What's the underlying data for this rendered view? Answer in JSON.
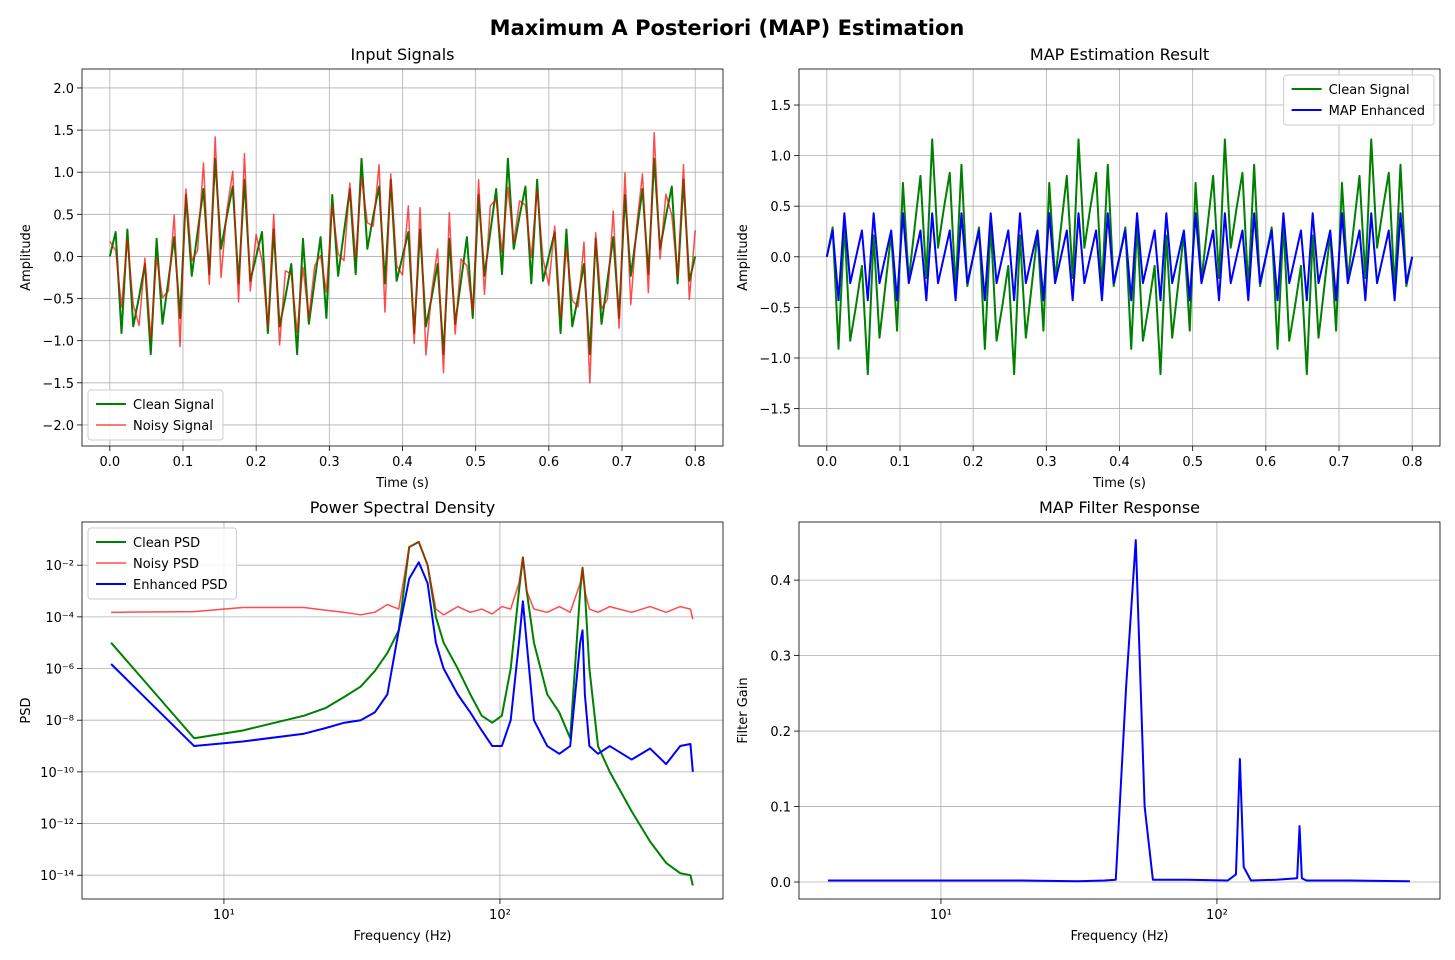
{
  "title": "Maximum A Posteriori (MAP) Estimation",
  "chart_data": [
    {
      "type": "line",
      "title": "Input Signals",
      "xlabel": "Time (s)",
      "ylabel": "Amplitude",
      "xlim": [
        -0.038,
        0.838
      ],
      "ylim": [
        -2.25,
        2.225
      ],
      "xticks": [
        {
          "value": 0,
          "label": "0.0"
        },
        0.1,
        0.2,
        0.3,
        0.4,
        0.5,
        0.6,
        0.7,
        0.8
      ],
      "yticks": [
        {
          "value": -2,
          "label": "−2.0"
        },
        {
          "value": -1.5,
          "label": "−1.5"
        },
        {
          "value": -1,
          "label": "−1.0"
        },
        {
          "value": -0.5,
          "label": "−0.5"
        },
        {
          "value": 0,
          "label": "0.0"
        },
        0.5,
        {
          "value": 1,
          "label": "1.0"
        },
        1.5,
        {
          "value": 2,
          "label": "2.0"
        }
      ],
      "grid": true,
      "legend": "lower left",
      "x": [
        0,
        0.008,
        0.016,
        0.024,
        0.032,
        0.04,
        0.048,
        0.056,
        0.064,
        0.072,
        0.08,
        0.088,
        0.096,
        0.104,
        0.112,
        0.12,
        0.128,
        0.136,
        0.144,
        0.152,
        0.16,
        0.168,
        0.176,
        0.184,
        0.192,
        0.2,
        0.208,
        0.216,
        0.224,
        0.232,
        0.24,
        0.248,
        0.256,
        0.264,
        0.272,
        0.28,
        0.288,
        0.296,
        0.304,
        0.312,
        0.32,
        0.328,
        0.336,
        0.344,
        0.352,
        0.36,
        0.368,
        0.376,
        0.384,
        0.392,
        0.4,
        0.408,
        0.416,
        0.424,
        0.432,
        0.44,
        0.448,
        0.456,
        0.464,
        0.472,
        0.48,
        0.488,
        0.496,
        0.504,
        0.512,
        0.52,
        0.528,
        0.536,
        0.544,
        0.552,
        0.56,
        0.568,
        0.576,
        0.584,
        0.592,
        0.6,
        0.608,
        0.616,
        0.624,
        0.632,
        0.64,
        0.648,
        0.656,
        0.664,
        0.672,
        0.68,
        0.688,
        0.696,
        0.704,
        0.712,
        0.72,
        0.728,
        0.736,
        0.744,
        0.752,
        0.76,
        0.768,
        0.776,
        0.784,
        0.792,
        0.8
      ],
      "series": [
        {
          "name": "Clean Signal",
          "color": "#008000",
          "width": 2,
          "opacity": 1,
          "values": [
            0,
            0.29,
            -0.91,
            0.32,
            -0.83,
            -0.48,
            -0.09,
            -1.16,
            0.21,
            -0.8,
            -0.29,
            0.23,
            -0.73,
            0.73,
            -0.23,
            0.29,
            0.8,
            -0.21,
            1.16,
            0.09,
            0.48,
            0.83,
            -0.32,
            0.91,
            -0.29,
            0,
            0.29,
            -0.91,
            0.32,
            -0.83,
            -0.48,
            -0.09,
            -1.16,
            0.21,
            -0.8,
            -0.29,
            0.23,
            -0.73,
            0.73,
            -0.23,
            0.29,
            0.8,
            -0.21,
            1.16,
            0.09,
            0.48,
            0.83,
            -0.32,
            0.91,
            -0.29,
            0,
            0.29,
            -0.91,
            0.32,
            -0.83,
            -0.48,
            -0.09,
            -1.16,
            0.21,
            -0.8,
            -0.29,
            0.23,
            -0.73,
            0.73,
            -0.23,
            0.29,
            0.8,
            -0.21,
            1.16,
            0.09,
            0.48,
            0.83,
            -0.32,
            0.91,
            -0.29,
            0,
            0.29,
            -0.91,
            0.32,
            -0.83,
            -0.48,
            -0.09,
            -1.16,
            0.21,
            -0.8,
            -0.29,
            0.23,
            -0.73,
            0.73,
            -0.23,
            0.29,
            0.8,
            -0.21,
            1.16,
            0.09,
            0.48,
            0.83,
            -0.32,
            0.91,
            -0.29,
            0
          ]
        },
        {
          "name": "Noisy Signal",
          "color": "#ff0000",
          "width": 1.5,
          "opacity": 0.7,
          "values": [
            0.18,
            0.07,
            -0.6,
            0.2,
            -0.57,
            -0.82,
            -0.02,
            -0.98,
            -0.01,
            -0.49,
            -0.41,
            0.49,
            -1.07,
            0.8,
            -0.05,
            0.07,
            1.11,
            -0.33,
            1.42,
            -0.25,
            0.55,
            1.01,
            -0.54,
            1.22,
            -0.41,
            0.26,
            -0.05,
            -0.84,
            0.5,
            -1.05,
            -0.17,
            -0.21,
            -0.9,
            -0.13,
            -0.73,
            -0.11,
            0.01,
            -0.42,
            0.61,
            0.03,
            -0.05,
            0.87,
            -0.03,
            0.94,
            0.4,
            0.36,
            1.09,
            -0.66,
            0.98,
            -0.11,
            -0.22,
            0.6,
            -1.03,
            0.58,
            -1.17,
            -0.41,
            0.09,
            -1.38,
            0.52,
            -0.92,
            -0.03,
            -0.11,
            -0.66,
            0.91,
            -0.45,
            0.6,
            0.68,
            0.05,
            0.82,
            0.16,
            0.66,
            0.61,
            -0.01,
            0.79,
            -0.03,
            -0.34,
            0.36,
            -0.73,
            0.1,
            -0.52,
            -0.6,
            0.17,
            -1.5,
            0.28,
            -0.62,
            -0.51,
            0.54,
            -0.85,
            0.99,
            -0.57,
            0.36,
            0.98,
            -0.43,
            1.47,
            -0.03,
            0.74,
            0.49,
            -0.25,
            1.09,
            -0.51,
            0.31
          ]
        }
      ]
    },
    {
      "type": "line",
      "title": "MAP Estimation Result",
      "xlabel": "Time (s)",
      "ylabel": "Amplitude",
      "xlim": [
        -0.038,
        0.838
      ],
      "ylim": [
        -1.87,
        1.856
      ],
      "xticks": [
        {
          "value": 0,
          "label": "0.0"
        },
        0.1,
        0.2,
        0.3,
        0.4,
        0.5,
        0.6,
        0.7,
        0.8
      ],
      "yticks": [
        {
          "value": -1.5,
          "label": "−1.5"
        },
        {
          "value": -1,
          "label": "−1.0"
        },
        {
          "value": -0.5,
          "label": "−0.5"
        },
        {
          "value": 0,
          "label": "0.0"
        },
        0.5,
        {
          "value": 1,
          "label": "1.0"
        },
        1.5
      ],
      "grid": true,
      "legend": "upper right",
      "x": [
        0,
        0.008,
        0.016,
        0.024,
        0.032,
        0.04,
        0.048,
        0.056,
        0.064,
        0.072,
        0.08,
        0.088,
        0.096,
        0.104,
        0.112,
        0.12,
        0.128,
        0.136,
        0.144,
        0.152,
        0.16,
        0.168,
        0.176,
        0.184,
        0.192,
        0.2,
        0.208,
        0.216,
        0.224,
        0.232,
        0.24,
        0.248,
        0.256,
        0.264,
        0.272,
        0.28,
        0.288,
        0.296,
        0.304,
        0.312,
        0.32,
        0.328,
        0.336,
        0.344,
        0.352,
        0.36,
        0.368,
        0.376,
        0.384,
        0.392,
        0.4,
        0.408,
        0.416,
        0.424,
        0.432,
        0.44,
        0.448,
        0.456,
        0.464,
        0.472,
        0.48,
        0.488,
        0.496,
        0.504,
        0.512,
        0.52,
        0.528,
        0.536,
        0.544,
        0.552,
        0.56,
        0.568,
        0.576,
        0.584,
        0.592,
        0.6,
        0.608,
        0.616,
        0.624,
        0.632,
        0.64,
        0.648,
        0.656,
        0.664,
        0.672,
        0.68,
        0.688,
        0.696,
        0.704,
        0.712,
        0.72,
        0.728,
        0.736,
        0.744,
        0.752,
        0.76,
        0.768,
        0.776,
        0.784,
        0.792,
        0.8
      ],
      "series": [
        {
          "name": "Clean Signal",
          "color": "#008000",
          "width": 2,
          "opacity": 1,
          "values": [
            0,
            0.29,
            -0.91,
            0.32,
            -0.83,
            -0.48,
            -0.09,
            -1.16,
            0.21,
            -0.8,
            -0.29,
            0.23,
            -0.73,
            0.73,
            -0.23,
            0.29,
            0.8,
            -0.21,
            1.16,
            0.09,
            0.48,
            0.83,
            -0.32,
            0.91,
            -0.29,
            0,
            0.29,
            -0.91,
            0.32,
            -0.83,
            -0.48,
            -0.09,
            -1.16,
            0.21,
            -0.8,
            -0.29,
            0.23,
            -0.73,
            0.73,
            -0.23,
            0.29,
            0.8,
            -0.21,
            1.16,
            0.09,
            0.48,
            0.83,
            -0.32,
            0.91,
            -0.29,
            0,
            0.29,
            -0.91,
            0.32,
            -0.83,
            -0.48,
            -0.09,
            -1.16,
            0.21,
            -0.8,
            -0.29,
            0.23,
            -0.73,
            0.73,
            -0.23,
            0.29,
            0.8,
            -0.21,
            1.16,
            0.09,
            0.48,
            0.83,
            -0.32,
            0.91,
            -0.29,
            0,
            0.29,
            -0.91,
            0.32,
            -0.83,
            -0.48,
            -0.09,
            -1.16,
            0.21,
            -0.8,
            -0.29,
            0.23,
            -0.73,
            0.73,
            -0.23,
            0.29,
            0.8,
            -0.21,
            1.16,
            0.09,
            0.48,
            0.83,
            -0.32,
            0.91,
            -0.29,
            0
          ]
        },
        {
          "name": "MAP Enhanced",
          "color": "#0000ff",
          "width": 2,
          "opacity": 1,
          "values": [
            0,
            0.26,
            -0.43,
            0.43,
            -0.26,
            0,
            0.26,
            -0.43,
            0.43,
            -0.26,
            0,
            0.26,
            -0.43,
            0.43,
            -0.26,
            0,
            0.26,
            -0.43,
            0.43,
            -0.26,
            0,
            0.26,
            -0.43,
            0.43,
            -0.26,
            0,
            0.26,
            -0.43,
            0.43,
            -0.26,
            0,
            0.26,
            -0.43,
            0.43,
            -0.26,
            0,
            0.26,
            -0.43,
            0.43,
            -0.26,
            0,
            0.26,
            -0.43,
            0.43,
            -0.26,
            0,
            0.26,
            -0.43,
            0.43,
            -0.26,
            0,
            0.26,
            -0.43,
            0.43,
            -0.26,
            0,
            0.26,
            -0.43,
            0.43,
            -0.26,
            0,
            0.26,
            -0.43,
            0.43,
            -0.26,
            0,
            0.26,
            -0.43,
            0.43,
            -0.26,
            0,
            0.26,
            -0.43,
            0.43,
            -0.26,
            0,
            0.26,
            -0.43,
            0.43,
            -0.26,
            0,
            0.26,
            -0.43,
            0.43,
            -0.26,
            0,
            0.26,
            -0.43,
            0.43,
            -0.26,
            0,
            0.26,
            -0.43,
            0.43,
            -0.26,
            0,
            0.26,
            -0.43,
            0.43,
            -0.26,
            0
          ]
        }
      ]
    },
    {
      "type": "line",
      "title": "Power Spectral Density",
      "xlabel": "Frequency (Hz)",
      "ylabel": "PSD",
      "xscale": "log",
      "yscale": "log",
      "xlim": [
        3.06,
        643
      ],
      "ylim": [
        1.2e-15,
        0.47
      ],
      "xticks": [
        {
          "value": 10,
          "label": "10¹"
        },
        {
          "value": 100,
          "label": "10²"
        }
      ],
      "yticks": [
        {
          "value": 1e-14,
          "label": "10⁻¹⁴"
        },
        {
          "value": 1e-12,
          "label": "10⁻¹²"
        },
        {
          "value": 1e-10,
          "label": "10⁻¹⁰"
        },
        {
          "value": 1e-08,
          "label": "10⁻⁸"
        },
        {
          "value": 1e-06,
          "label": "10⁻⁶"
        },
        {
          "value": 0.0001,
          "label": "10⁻⁴"
        },
        {
          "value": 0.01,
          "label": "10⁻²"
        }
      ],
      "grid": true,
      "legend": "upper left",
      "x": [
        3.9,
        7.8,
        11.7,
        19.5,
        23.4,
        27.3,
        31.3,
        35.2,
        39.1,
        43,
        46.9,
        50.8,
        54.7,
        58.6,
        62.5,
        70.3,
        78.1,
        85.9,
        93.8,
        101.6,
        109.4,
        117.2,
        121.1,
        125,
        132.8,
        148.4,
        164.1,
        179.7,
        195.3,
        199.2,
        203.1,
        210.9,
        226.6,
        250,
        300,
        350,
        400,
        450,
        490,
        500
      ],
      "series": [
        {
          "name": "Clean PSD",
          "color": "#008000",
          "width": 2,
          "opacity": 1,
          "values": [
            1e-05,
            2e-09,
            4e-09,
            1.5e-08,
            3e-08,
            8e-08,
            2e-07,
            8e-07,
            4e-06,
            3e-05,
            0.05,
            0.08,
            0.01,
            0.0001,
            1e-05,
            1e-06,
            1e-07,
            1.5e-08,
            8e-09,
            1.5e-08,
            1e-06,
            0.001,
            0.02,
            0.001,
            1e-05,
            1e-07,
            2e-08,
            2e-09,
            0.001,
            0.008,
            0.001,
            1e-06,
            1e-09,
            1e-10,
            3e-12,
            2e-13,
            3e-14,
            1.2e-14,
            1e-14,
            4e-15
          ]
        },
        {
          "name": "Noisy PSD",
          "color": "#ff0000",
          "width": 1.5,
          "opacity": 0.7,
          "values": [
            0.00015,
            0.00016,
            0.00023,
            0.00023,
            0.00018,
            0.00015,
            0.00012,
            0.00015,
            0.0003,
            0.0002,
            0.05,
            0.08,
            0.01,
            0.0002,
            0.00012,
            0.00025,
            0.00015,
            0.0002,
            0.00013,
            0.00025,
            0.0002,
            0.002,
            0.02,
            0.001,
            0.0002,
            0.00015,
            0.00025,
            0.00015,
            0.002,
            0.008,
            0.001,
            0.0002,
            0.00015,
            0.00025,
            0.00015,
            0.00025,
            0.00015,
            0.00025,
            0.0002,
            8e-05
          ]
        },
        {
          "name": "Enhanced PSD",
          "color": "#0000ff",
          "width": 2,
          "opacity": 1,
          "values": [
            1.5e-06,
            1e-09,
            1.5e-09,
            3e-09,
            5e-09,
            8e-09,
            1e-08,
            2e-08,
            1e-07,
            3e-05,
            0.003,
            0.013,
            0.002,
            1e-05,
            1e-06,
            1e-07,
            2e-08,
            4e-09,
            1e-09,
            1e-09,
            1e-08,
            1e-05,
            0.0004,
            1e-05,
            1e-08,
            1e-09,
            5e-10,
            1e-09,
            1e-05,
            3e-05,
            1e-07,
            1e-09,
            5e-10,
            1e-09,
            3e-10,
            8e-10,
            2e-10,
            1e-09,
            1.2e-09,
            1e-10
          ]
        }
      ]
    },
    {
      "type": "line",
      "title": "MAP Filter Response",
      "xlabel": "Frequency (Hz)",
      "ylabel": "Filter Gain",
      "xscale": "log",
      "xlim": [
        3.06,
        643
      ],
      "ylim": [
        -0.0225,
        0.477
      ],
      "xticks": [
        {
          "value": 10,
          "label": "10¹"
        },
        {
          "value": 100,
          "label": "10²"
        }
      ],
      "yticks": [
        {
          "value": 0,
          "label": "0.0"
        },
        0.1,
        0.2,
        0.3,
        0.4
      ],
      "grid": true,
      "x": [
        3.9,
        10,
        19.5,
        31.3,
        39.1,
        43,
        46.9,
        50.8,
        54.7,
        58.6,
        78.1,
        109.4,
        117.2,
        121.1,
        125,
        132.8,
        164.1,
        195.3,
        199.2,
        203.1,
        210.9,
        300,
        500
      ],
      "series": [
        {
          "color": "#0000ff",
          "width": 2,
          "opacity": 1,
          "values": [
            0.002,
            0.002,
            0.002,
            0.001,
            0.002,
            0.003,
            0.26,
            0.453,
            0.1,
            0.003,
            0.003,
            0.002,
            0.01,
            0.163,
            0.02,
            0.002,
            0.003,
            0.005,
            0.074,
            0.005,
            0.002,
            0.002,
            0.001
          ]
        }
      ]
    }
  ]
}
